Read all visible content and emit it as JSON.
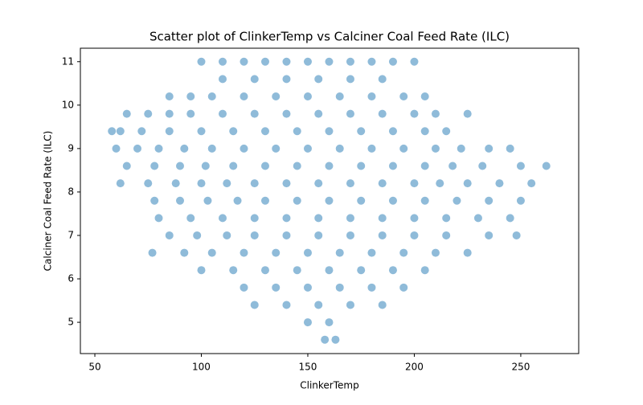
{
  "chart_data": {
    "type": "scatter",
    "title": "Scatter plot of ClinkerTemp vs Calciner Coal Feed Rate (ILC)",
    "x_label": "ClinkerTemp",
    "y_label": "Calciner Coal Feed Rate (ILC)",
    "color": "#1f77b4",
    "xlim": [
      43.2,
      277.2
    ],
    "ylim": [
      4.28,
      11.31
    ],
    "xticks": [
      50,
      100,
      150,
      200,
      250
    ],
    "yticks": [
      5,
      6,
      7,
      8,
      9,
      10,
      11
    ],
    "x": [
      100,
      110,
      120,
      130,
      140,
      150,
      160,
      170,
      180,
      190,
      200,
      110,
      125,
      140,
      155,
      170,
      185,
      85,
      95,
      105,
      120,
      135,
      150,
      165,
      180,
      195,
      205,
      65,
      75,
      85,
      95,
      110,
      125,
      140,
      155,
      170,
      185,
      200,
      210,
      225,
      58,
      62,
      72,
      85,
      100,
      115,
      130,
      145,
      160,
      175,
      190,
      205,
      215,
      60,
      70,
      80,
      92,
      105,
      120,
      135,
      150,
      165,
      180,
      195,
      210,
      222,
      235,
      245,
      65,
      78,
      90,
      102,
      115,
      130,
      145,
      160,
      175,
      190,
      205,
      218,
      232,
      250,
      262,
      62,
      75,
      88,
      100,
      112,
      125,
      140,
      155,
      170,
      185,
      200,
      212,
      225,
      240,
      255,
      78,
      90,
      103,
      117,
      130,
      145,
      160,
      175,
      190,
      205,
      220,
      235,
      250,
      80,
      95,
      110,
      125,
      140,
      155,
      170,
      185,
      200,
      215,
      230,
      245,
      85,
      98,
      112,
      125,
      140,
      155,
      170,
      185,
      200,
      215,
      235,
      248,
      77,
      92,
      105,
      120,
      135,
      150,
      165,
      180,
      195,
      210,
      225,
      100,
      115,
      130,
      145,
      160,
      175,
      190,
      205,
      120,
      135,
      150,
      165,
      180,
      195,
      125,
      140,
      155,
      170,
      185,
      150,
      160,
      158,
      163
    ],
    "y": [
      11,
      11,
      11,
      11,
      11,
      11,
      11,
      11,
      11,
      11,
      11,
      10.6,
      10.6,
      10.6,
      10.6,
      10.6,
      10.6,
      10.2,
      10.2,
      10.2,
      10.2,
      10.2,
      10.2,
      10.2,
      10.2,
      10.2,
      10.2,
      9.8,
      9.8,
      9.8,
      9.8,
      9.8,
      9.8,
      9.8,
      9.8,
      9.8,
      9.8,
      9.8,
      9.8,
      9.8,
      9.4,
      9.4,
      9.4,
      9.4,
      9.4,
      9.4,
      9.4,
      9.4,
      9.4,
      9.4,
      9.4,
      9.4,
      9.4,
      9,
      9,
      9,
      9,
      9,
      9,
      9,
      9,
      9,
      9,
      9,
      9,
      9,
      9,
      9,
      8.6,
      8.6,
      8.6,
      8.6,
      8.6,
      8.6,
      8.6,
      8.6,
      8.6,
      8.6,
      8.6,
      8.6,
      8.6,
      8.6,
      8.6,
      8.2,
      8.2,
      8.2,
      8.2,
      8.2,
      8.2,
      8.2,
      8.2,
      8.2,
      8.2,
      8.2,
      8.2,
      8.2,
      8.2,
      8.2,
      7.8,
      7.8,
      7.8,
      7.8,
      7.8,
      7.8,
      7.8,
      7.8,
      7.8,
      7.8,
      7.8,
      7.8,
      7.8,
      7.4,
      7.4,
      7.4,
      7.4,
      7.4,
      7.4,
      7.4,
      7.4,
      7.4,
      7.4,
      7.4,
      7.4,
      7,
      7,
      7,
      7,
      7,
      7,
      7,
      7,
      7,
      7,
      7,
      7,
      6.6,
      6.6,
      6.6,
      6.6,
      6.6,
      6.6,
      6.6,
      6.6,
      6.6,
      6.6,
      6.6,
      6.2,
      6.2,
      6.2,
      6.2,
      6.2,
      6.2,
      6.2,
      6.2,
      5.8,
      5.8,
      5.8,
      5.8,
      5.8,
      5.8,
      5.4,
      5.4,
      5.4,
      5.4,
      5.4,
      5,
      5,
      4.6,
      4.6
    ]
  }
}
